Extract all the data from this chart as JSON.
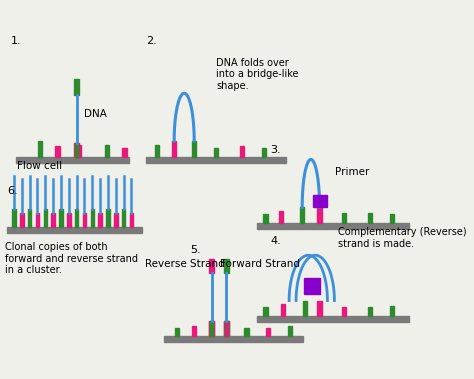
{
  "bg_color": "#f0f0eb",
  "flow_cell_color": "#7a7a7a",
  "green_bar": "#2d8b2d",
  "pink_bar": "#e8197a",
  "blue_line": "#3b8fdb",
  "purple_box": "#8800cc",
  "annotations": {
    "1_dna": "DNA",
    "1_flow": "Flow cell",
    "2_text": "DNA folds over\ninto a bridge-like\nshape.",
    "3_primer": "Primer",
    "4_text": "Complementary (Reverse)\nstrand is made.",
    "5_rev": "Reverse Strand",
    "5_fwd": "Forward Strand",
    "6_text": "Clonal copies of both\nforward and reverse strand\nin a cluster."
  }
}
